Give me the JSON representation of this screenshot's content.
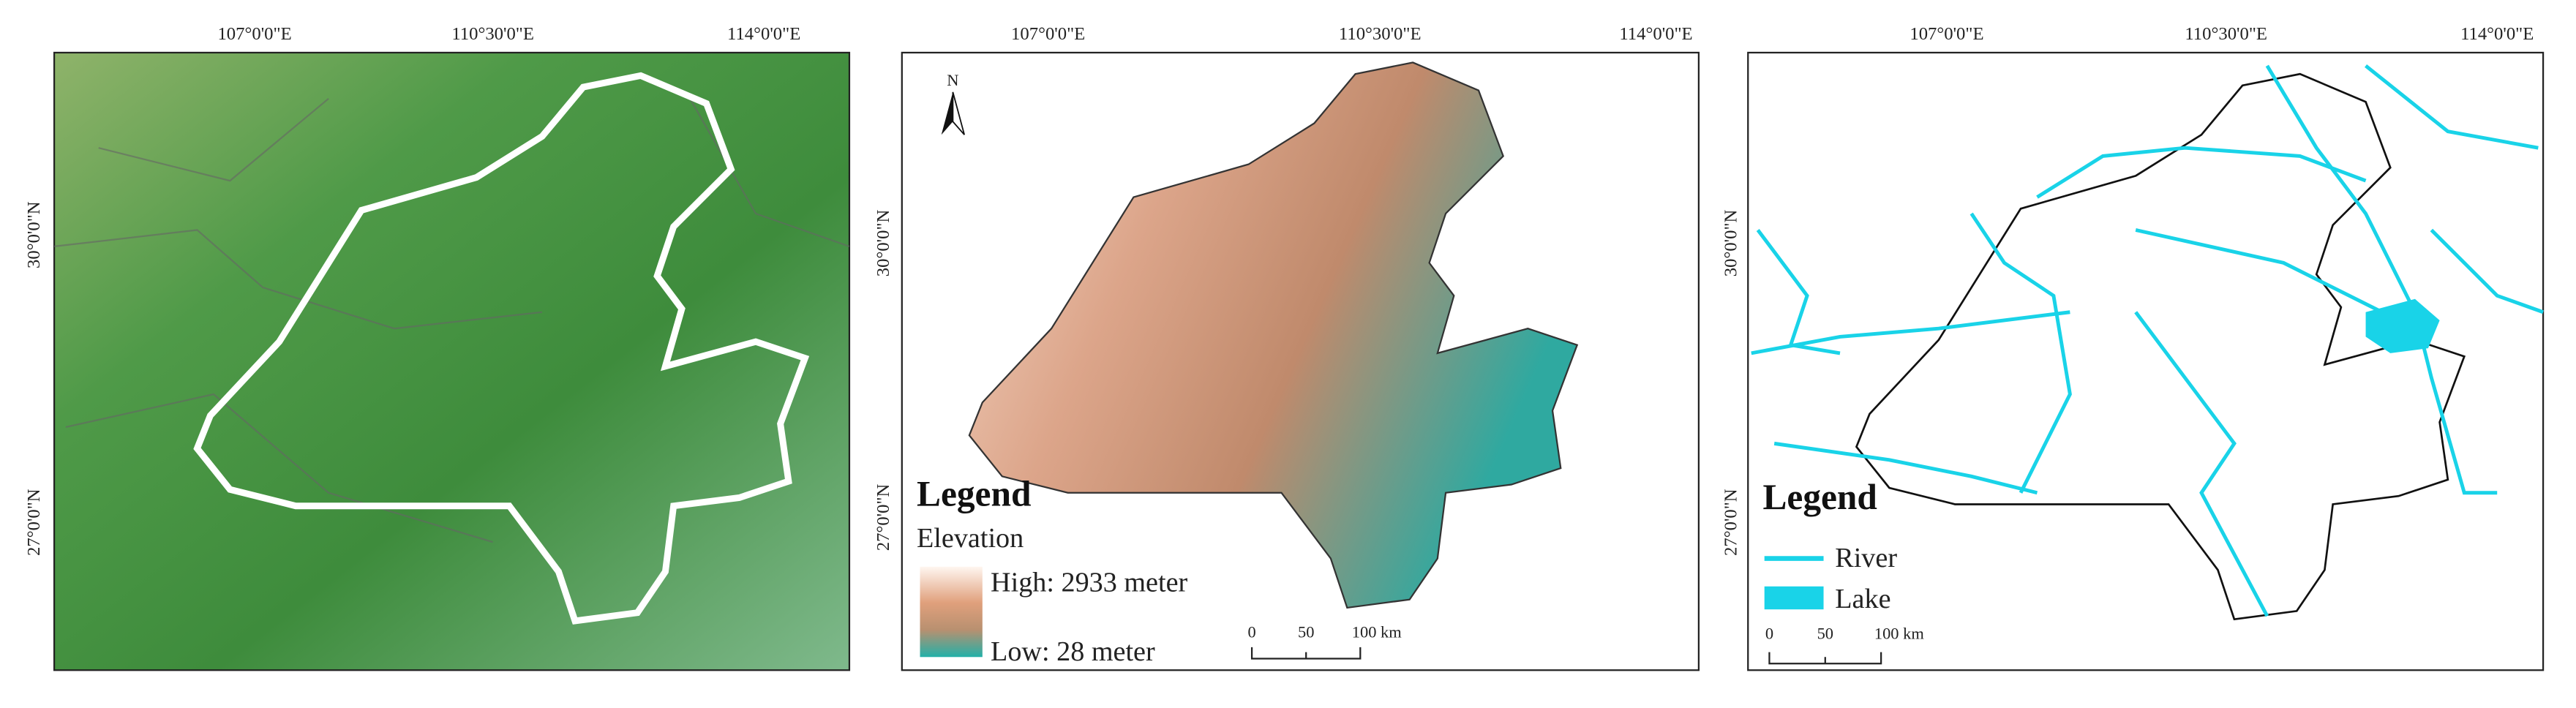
{
  "panels": [
    {
      "top_ticks": [
        "107°0'0\"E",
        "110°30'0\"E",
        "114°0'0\"E"
      ],
      "left_ticks": [
        "30°0'0\"N",
        "27°0'0\"N"
      ]
    },
    {
      "top_ticks": [
        "107°0'0\"E",
        "110°30'0\"E",
        "114°0'0\"E"
      ],
      "left_ticks": [
        "30°0'0\"N",
        "27°0'0\"N"
      ],
      "north": "N",
      "legend": {
        "title": "Legend",
        "subtitle": "Elevation",
        "high": "High: 2933 meter",
        "low": "Low: 28 meter"
      },
      "scale": [
        "0",
        "50",
        "100 km"
      ]
    },
    {
      "top_ticks": [
        "107°0'0\"E",
        "110°30'0\"E",
        "114°0'0\"E"
      ],
      "left_ticks": [
        "30°0'0\"N",
        "27°0'0\"N"
      ],
      "legend": {
        "title": "Legend",
        "river": "River",
        "lake": "Lake"
      },
      "scale": [
        "0",
        "50",
        "100 km"
      ]
    }
  ]
}
